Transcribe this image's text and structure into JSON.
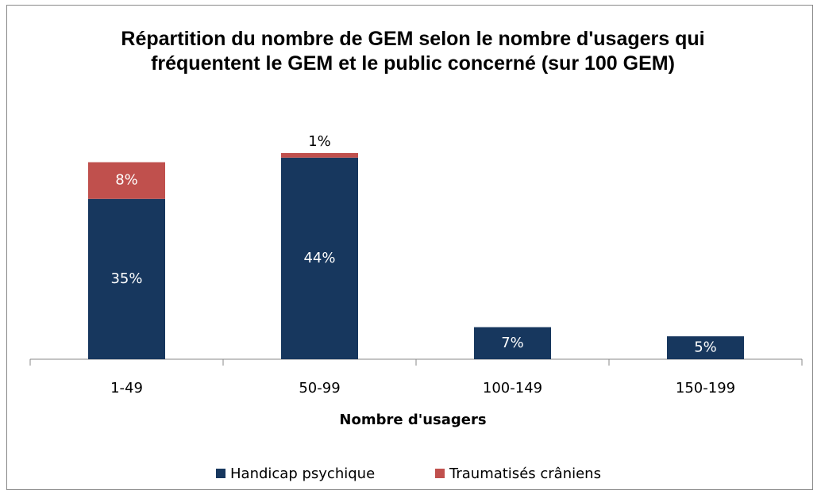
{
  "chart_data": {
    "type": "stacked-bar",
    "title": "Répartition du nombre de GEM selon le nombre d'usagers qui fréquentent le GEM et le public concerné (sur 100 GEM)",
    "x_label": "Nombre d'usagers",
    "categories": [
      "1-49",
      "50-99",
      "100-149",
      "150-199"
    ],
    "series": [
      {
        "name": "Handicap psychique",
        "color": "#17375e",
        "values": [
          35,
          44,
          7,
          5
        ],
        "value_labels": [
          "35%",
          "44%",
          "7%",
          "5%"
        ]
      },
      {
        "name": "Traumatisés crâniens",
        "color": "#c0504d",
        "values": [
          8,
          1,
          null,
          null
        ],
        "value_labels": [
          "8%",
          "1%",
          null,
          null
        ]
      }
    ],
    "legend": "bottom"
  }
}
